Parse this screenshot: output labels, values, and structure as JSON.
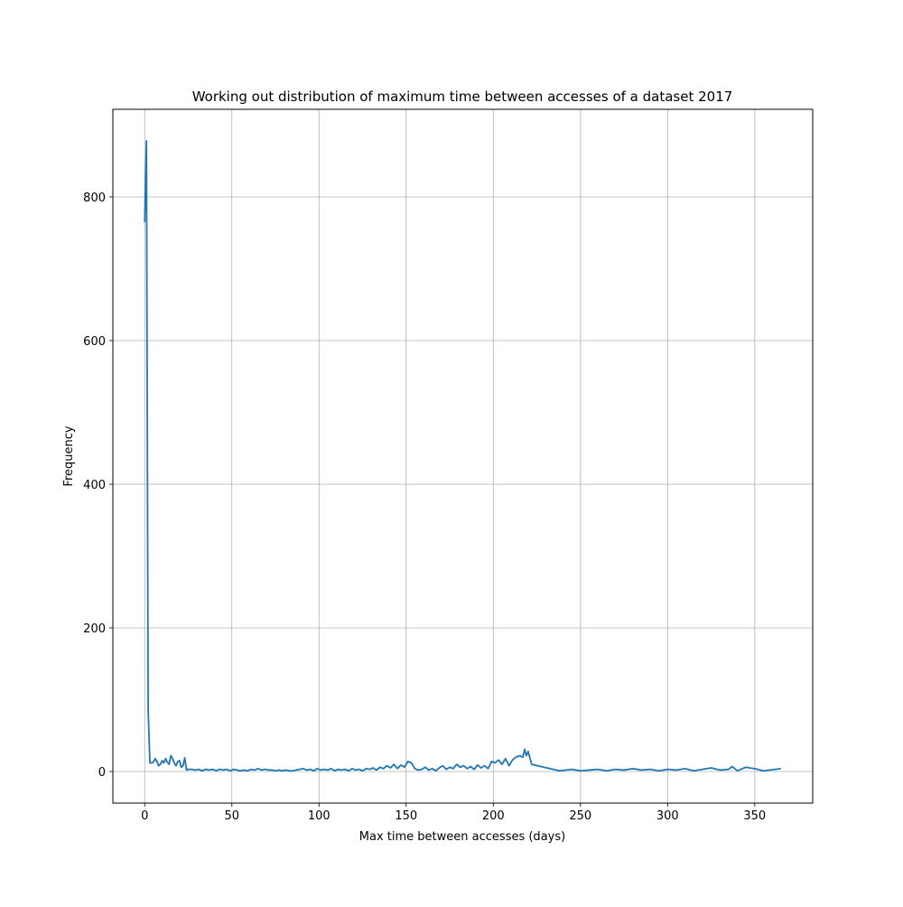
{
  "chart_data": {
    "type": "line",
    "title": "Working out distribution of maximum time between accesses of a dataset 2017",
    "x_label": "Max time between accesses (days)",
    "y_label": "Frequency",
    "x": [
      0,
      1,
      2,
      3,
      4,
      5,
      6,
      7,
      8,
      9,
      10,
      11,
      12,
      13,
      14,
      15,
      16,
      17,
      18,
      19,
      20,
      21,
      22,
      23,
      24,
      25,
      27,
      29,
      31,
      33,
      35,
      37,
      39,
      41,
      43,
      45,
      47,
      49,
      51,
      53,
      55,
      57,
      59,
      61,
      63,
      65,
      67,
      69,
      71,
      73,
      75,
      77,
      79,
      81,
      83,
      85,
      87,
      89,
      91,
      93,
      95,
      97,
      99,
      101,
      103,
      105,
      107,
      109,
      111,
      113,
      115,
      117,
      119,
      121,
      123,
      125,
      127,
      129,
      131,
      133,
      135,
      137,
      139,
      141,
      143,
      145,
      147,
      149,
      151,
      153,
      155,
      157,
      159,
      161,
      163,
      165,
      167,
      169,
      171,
      173,
      175,
      177,
      179,
      181,
      183,
      185,
      187,
      189,
      191,
      193,
      195,
      197,
      199,
      201,
      203,
      205,
      207,
      209,
      211,
      213,
      215,
      217,
      218,
      219,
      220,
      222,
      238,
      245,
      250,
      255,
      260,
      265,
      270,
      275,
      280,
      285,
      290,
      295,
      300,
      305,
      310,
      315,
      320,
      325,
      330,
      335,
      337,
      340,
      345,
      347,
      350,
      355,
      365
    ],
    "series": [
      {
        "name": "Frequency",
        "color": "#1f77b4",
        "values": [
          765,
          878,
          85,
          12,
          12,
          13,
          18,
          14,
          8,
          10,
          15,
          12,
          18,
          13,
          10,
          22,
          18,
          12,
          8,
          14,
          15,
          6,
          8,
          19,
          2,
          3,
          3,
          2,
          3,
          1,
          3,
          2,
          3,
          1,
          3,
          2,
          3,
          1,
          3,
          2,
          1,
          2,
          1,
          3,
          2,
          4,
          2,
          3,
          2,
          2,
          1,
          2,
          1,
          2,
          1,
          1,
          2,
          3,
          4,
          2,
          3,
          1,
          4,
          2,
          3,
          2,
          4,
          1,
          3,
          2,
          3,
          1,
          4,
          2,
          3,
          1,
          4,
          3,
          5,
          2,
          6,
          4,
          8,
          5,
          10,
          4,
          9,
          6,
          14,
          12,
          4,
          2,
          3,
          6,
          2,
          4,
          1,
          5,
          8,
          3,
          6,
          4,
          10,
          6,
          8,
          4,
          7,
          3,
          9,
          5,
          8,
          4,
          14,
          12,
          16,
          10,
          18,
          8,
          16,
          20,
          22,
          20,
          31,
          22,
          28,
          10,
          1,
          3,
          1,
          2,
          3,
          1,
          3,
          2,
          4,
          2,
          3,
          1,
          3,
          2,
          4,
          1,
          3,
          5,
          2,
          3,
          7,
          1,
          6,
          5,
          4,
          1,
          4
        ]
      }
    ],
    "xlim": [
      -18.25,
      383.25
    ],
    "ylim": [
      -44,
      922
    ],
    "xticks": [
      0,
      50,
      100,
      150,
      200,
      250,
      300,
      350
    ],
    "yticks": [
      0,
      200,
      400,
      600,
      800
    ],
    "grid": true
  }
}
